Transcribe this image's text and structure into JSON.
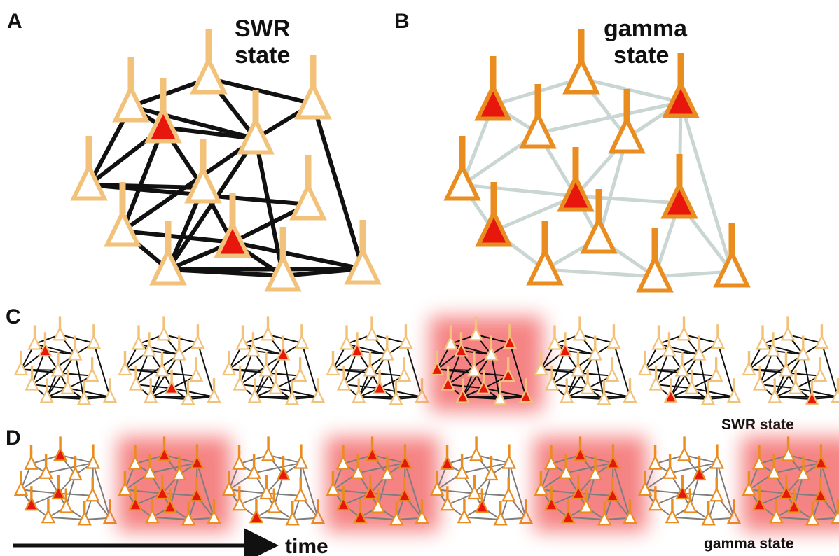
{
  "panels": {
    "a": {
      "letter": "A",
      "title_line1": "SWR",
      "title_line2": "state"
    },
    "b": {
      "letter": "B",
      "title_line1": "gamma",
      "title_line2": "state"
    },
    "c": {
      "letter": "C",
      "state_label": "SWR state"
    },
    "d": {
      "letter": "D",
      "state_label": "gamma state"
    }
  },
  "time_axis": {
    "label": "time"
  },
  "colors": {
    "swr_neuron": "#f2c27a",
    "gamma_neuron": "#e98d21",
    "active_fill": "#e8170d",
    "swr_edge": "#111111",
    "gamma_edge_large": "#c9d6d3",
    "gamma_edge_small": "#7d7d7d",
    "highlight_glow": "#f25a5a"
  },
  "sequence_c": {
    "frames": [
      {
        "active": [
          3
        ],
        "highlighted": false
      },
      {
        "active": [
          9
        ],
        "highlighted": false
      },
      {
        "active": [
          4
        ],
        "highlighted": false
      },
      {
        "active": [
          3,
          9
        ],
        "highlighted": false
      },
      {
        "active": [
          2,
          3,
          5,
          7,
          8,
          9,
          10,
          12
        ],
        "highlighted": true
      },
      {
        "active": [
          3
        ],
        "highlighted": false
      },
      {
        "active": [
          10
        ],
        "highlighted": false
      },
      {
        "active": [
          11
        ],
        "highlighted": false
      }
    ]
  },
  "sequence_d": {
    "frames": [
      {
        "active": [
          0,
          6,
          8
        ],
        "highlighted": false
      },
      {
        "active": [
          0,
          2,
          6,
          7,
          8,
          9
        ],
        "highlighted": true
      },
      {
        "active": [
          4,
          10
        ],
        "highlighted": false
      },
      {
        "active": [
          0,
          2,
          6,
          7,
          8,
          10
        ],
        "highlighted": true
      },
      {
        "active": [
          1,
          9
        ],
        "highlighted": false
      },
      {
        "active": [
          0,
          2,
          6,
          7,
          8,
          10
        ],
        "highlighted": true
      },
      {
        "active": [
          6,
          4
        ],
        "highlighted": false
      },
      {
        "active": [
          2,
          6,
          7,
          8,
          9
        ],
        "highlighted": true
      }
    ]
  }
}
